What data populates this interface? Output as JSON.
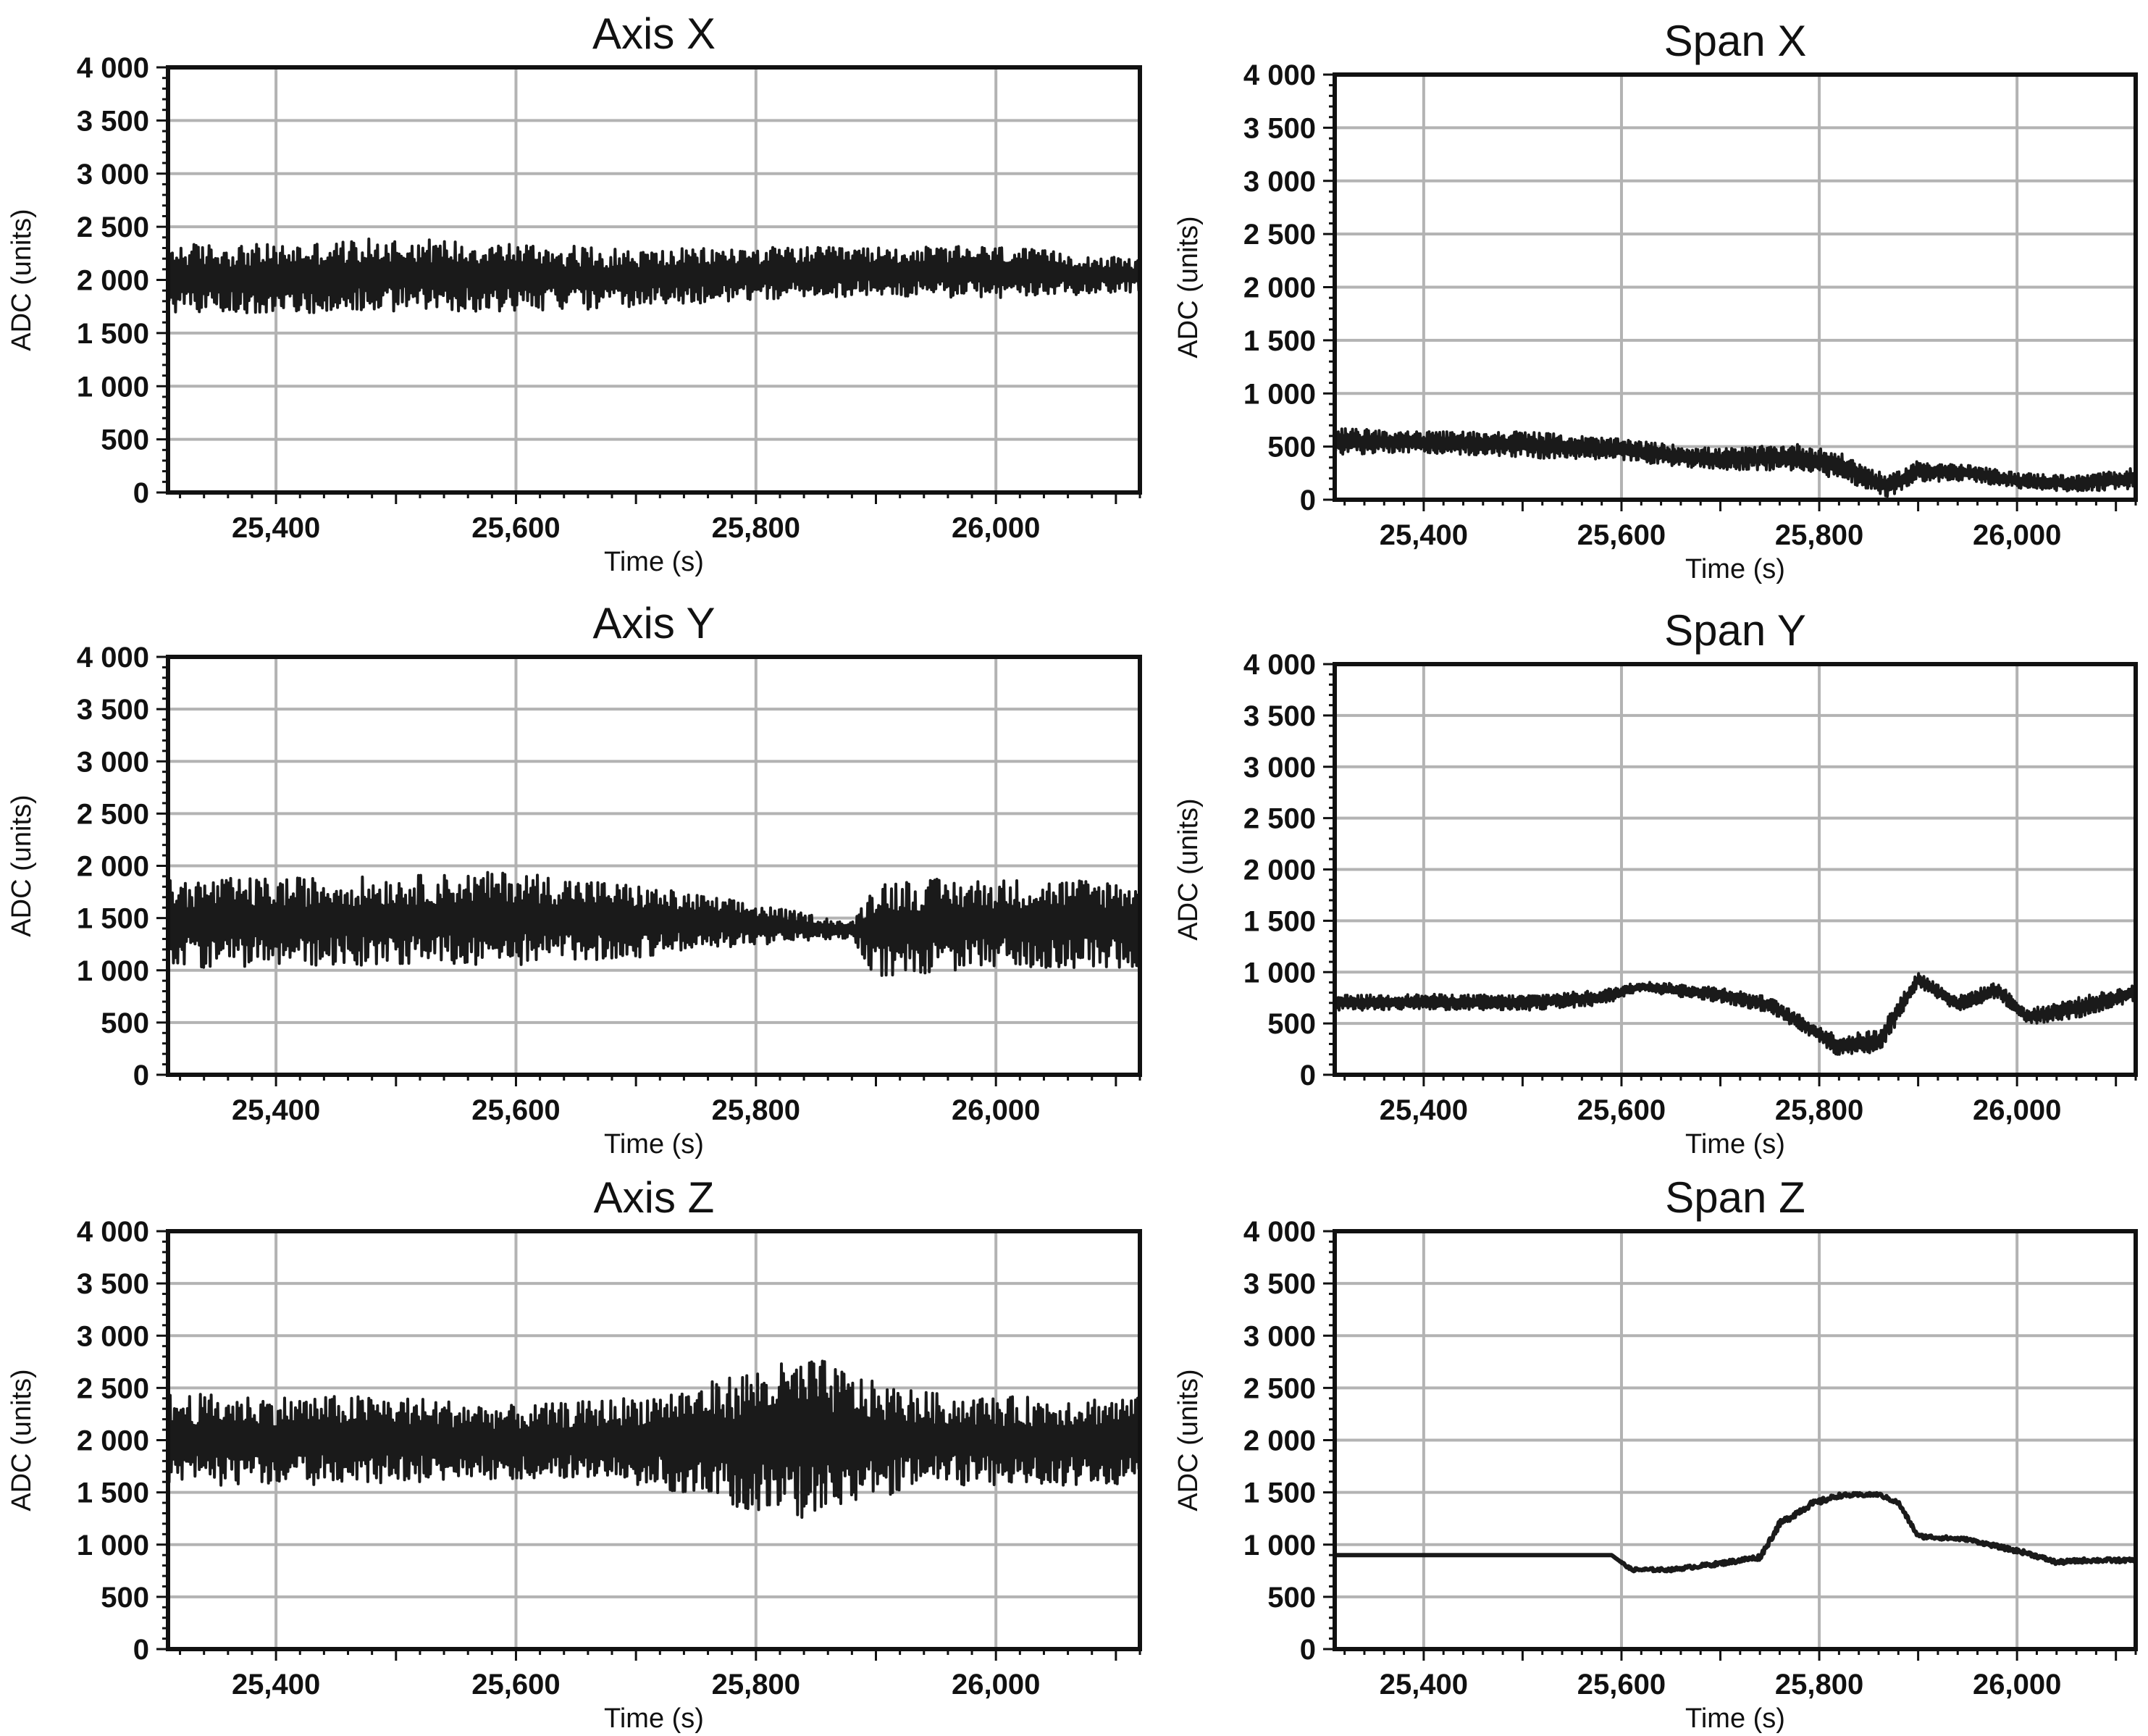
{
  "figure": {
    "background": "#ffffff",
    "plot_background": "#ffffff",
    "grid_color": "#b3b3b3",
    "line_color": "#1a1a1a"
  },
  "chart_data": [
    {
      "type": "line",
      "title": "Axis X",
      "xlabel": "Time (s)",
      "ylabel": "ADC (units)",
      "xlim": [
        25310,
        26120
      ],
      "ylim": [
        0,
        4000
      ],
      "xticks": [
        25400,
        25600,
        25800,
        26000
      ],
      "xtick_labels": [
        "25,400",
        "25,600",
        "25,800",
        "26,000"
      ],
      "yticks": [
        0,
        500,
        1000,
        1500,
        2000,
        2500,
        3000,
        3500,
        4000
      ],
      "ytick_labels": [
        "0",
        "500",
        "1 000",
        "1 500",
        "2 000",
        "2 500",
        "3 000",
        "3 500",
        "4 000"
      ],
      "grid": true,
      "series": [
        {
          "x": [
            25310,
            25400,
            25500,
            25600,
            25700,
            25800,
            25900,
            26000,
            26120
          ],
          "y": [
            2020,
            2010,
            2050,
            2030,
            2010,
            2060,
            2080,
            2070,
            2040
          ],
          "band": [
            650,
            650,
            700,
            650,
            550,
            500,
            450,
            500,
            300
          ]
        }
      ]
    },
    {
      "type": "line",
      "title": "Span X",
      "xlabel": "Time (s)",
      "ylabel": "ADC (units)",
      "xlim": [
        25310,
        26120
      ],
      "ylim": [
        0,
        4000
      ],
      "xticks": [
        25400,
        25600,
        25800,
        26000
      ],
      "xtick_labels": [
        "25,400",
        "25,600",
        "25,800",
        "26,000"
      ],
      "yticks": [
        0,
        500,
        1000,
        1500,
        2000,
        2500,
        3000,
        3500,
        4000
      ],
      "ytick_labels": [
        "0",
        "500",
        "1 000",
        "1 500",
        "2 000",
        "2 500",
        "3 000",
        "3 500",
        "4 000"
      ],
      "grid": true,
      "series": [
        {
          "x": [
            25310,
            25400,
            25500,
            25600,
            25650,
            25700,
            25780,
            25820,
            25870,
            25900,
            25950,
            26000,
            26060,
            26120
          ],
          "y": [
            550,
            540,
            520,
            470,
            420,
            380,
            400,
            320,
            120,
            270,
            250,
            180,
            150,
            200
          ],
          "band": [
            250,
            200,
            250,
            200,
            200,
            200,
            250,
            250,
            200,
            200,
            150,
            150,
            150,
            200
          ]
        }
      ]
    },
    {
      "type": "line",
      "title": "Axis Y",
      "xlabel": "Time (s)",
      "ylabel": "ADC (units)",
      "xlim": [
        25310,
        26120
      ],
      "ylim": [
        0,
        4000
      ],
      "xticks": [
        25400,
        25600,
        25800,
        26000
      ],
      "xtick_labels": [
        "25,400",
        "25,600",
        "25,800",
        "26,000"
      ],
      "yticks": [
        0,
        500,
        1000,
        1500,
        2000,
        2500,
        3000,
        3500,
        4000
      ],
      "ytick_labels": [
        "0",
        "500",
        "1 000",
        "1 500",
        "2 000",
        "2 500",
        "3 000",
        "3 500",
        "4 000"
      ],
      "grid": true,
      "series": [
        {
          "x": [
            25310,
            25400,
            25500,
            25600,
            25700,
            25780,
            25830,
            25880,
            25900,
            26000,
            26120
          ],
          "y": [
            1450,
            1460,
            1480,
            1500,
            1470,
            1450,
            1420,
            1380,
            1400,
            1450,
            1450
          ],
          "band": [
            850,
            850,
            850,
            900,
            700,
            450,
            300,
            150,
            950,
            850,
            850
          ]
        }
      ]
    },
    {
      "type": "line",
      "title": "Span Y",
      "xlabel": "Time (s)",
      "ylabel": "ADC (units)",
      "xlim": [
        25310,
        26120
      ],
      "ylim": [
        0,
        4000
      ],
      "xticks": [
        25400,
        25600,
        25800,
        26000
      ],
      "xtick_labels": [
        "25,400",
        "25,600",
        "25,800",
        "26,000"
      ],
      "yticks": [
        0,
        500,
        1000,
        1500,
        2000,
        2500,
        3000,
        3500,
        4000
      ],
      "ytick_labels": [
        "0",
        "500",
        "1 000",
        "1 500",
        "2 000",
        "2 500",
        "3 000",
        "3 500",
        "4 000"
      ],
      "grid": true,
      "series": [
        {
          "x": [
            25310,
            25400,
            25500,
            25580,
            25620,
            25700,
            25750,
            25790,
            25820,
            25860,
            25900,
            25940,
            25980,
            26010,
            26060,
            26120
          ],
          "y": [
            700,
            710,
            700,
            750,
            860,
            780,
            680,
            450,
            280,
            320,
            930,
            690,
            830,
            560,
            650,
            800
          ],
          "band": [
            150,
            150,
            150,
            150,
            100,
            150,
            150,
            150,
            200,
            250,
            150,
            150,
            150,
            150,
            200,
            150
          ]
        }
      ]
    },
    {
      "type": "line",
      "title": "Axis Z",
      "xlabel": "Time (s)",
      "ylabel": "ADC (units)",
      "xlim": [
        25310,
        26120
      ],
      "ylim": [
        0,
        4000
      ],
      "xticks": [
        25400,
        25600,
        25800,
        26000
      ],
      "xtick_labels": [
        "25,400",
        "25,600",
        "25,800",
        "26,000"
      ],
      "yticks": [
        0,
        500,
        1000,
        1500,
        2000,
        2500,
        3000,
        3500,
        4000
      ],
      "ytick_labels": [
        "0",
        "500",
        "1 000",
        "1 500",
        "2 000",
        "2 500",
        "3 000",
        "3 500",
        "4 000"
      ],
      "grid": true,
      "series": [
        {
          "x": [
            25310,
            25400,
            25500,
            25600,
            25650,
            25700,
            25760,
            25800,
            25850,
            25900,
            25950,
            26000,
            26120
          ],
          "y": [
            2000,
            2000,
            2000,
            1980,
            1990,
            2000,
            2000,
            2000,
            2020,
            2000,
            2000,
            1990,
            2000
          ],
          "band": [
            900,
            850,
            850,
            700,
            750,
            850,
            1100,
            1400,
            1550,
            1100,
            900,
            850,
            850
          ]
        }
      ]
    },
    {
      "type": "line",
      "title": "Span Z",
      "xlabel": "Time (s)",
      "ylabel": "ADC (units)",
      "xlim": [
        25310,
        26120
      ],
      "ylim": [
        0,
        4000
      ],
      "xticks": [
        25400,
        25600,
        25800,
        26000
      ],
      "xtick_labels": [
        "25,400",
        "25,600",
        "25,800",
        "26,000"
      ],
      "yticks": [
        0,
        500,
        1000,
        1500,
        2000,
        2500,
        3000,
        3500,
        4000
      ],
      "ytick_labels": [
        "0",
        "500",
        "1 000",
        "1 500",
        "2 000",
        "2 500",
        "3 000",
        "3 500",
        "4 000"
      ],
      "grid": true,
      "series": [
        {
          "x": [
            25310,
            25400,
            25500,
            25590,
            25610,
            25650,
            25700,
            25740,
            25760,
            25790,
            25820,
            25860,
            25880,
            25900,
            25950,
            25990,
            26010,
            26040,
            26070,
            26100,
            26120
          ],
          "y": [
            900,
            900,
            900,
            900,
            760,
            760,
            820,
            880,
            1200,
            1380,
            1470,
            1480,
            1400,
            1080,
            1050,
            960,
            920,
            830,
            850,
            850,
            850
          ],
          "band": [
            0,
            0,
            0,
            0,
            30,
            30,
            40,
            50,
            60,
            60,
            40,
            30,
            40,
            40,
            30,
            40,
            40,
            40,
            40,
            40,
            30
          ]
        }
      ]
    }
  ]
}
